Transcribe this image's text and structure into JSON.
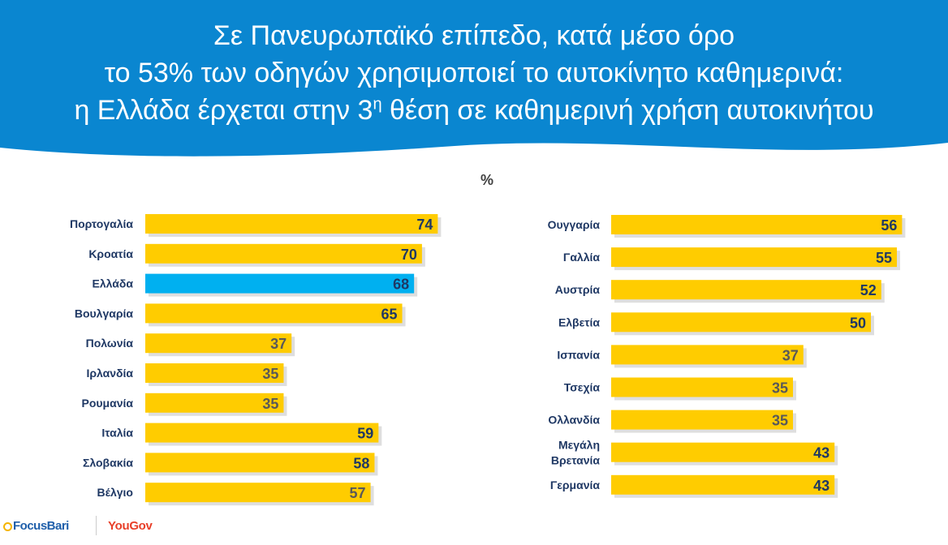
{
  "title": {
    "line1": "Σε Πανευρωπαϊκό επίπεδο, κατά μέσο όρο",
    "line2": "το 53% των οδηγών χρησιμοποιεί το αυτοκίνητο καθημερινά:",
    "line3_before": "η Ελλάδα έρχεται στην 3",
    "line3_sup": "η",
    "line3_after": " θέση σε καθημερινή χρήση αυτοκινήτου"
  },
  "unit_label": "%",
  "colors": {
    "header_bg": "#0a86d0",
    "bar_default": "#ffcc00",
    "bar_highlight": "#00b0f0",
    "label_text": "#1f3864",
    "value_dark": "#1f3864",
    "value_muted": "#595959"
  },
  "chart_data": [
    {
      "type": "bar",
      "orientation": "horizontal",
      "categories": [
        "Πορτογαλία",
        "Κροατία",
        "Ελλάδα",
        "Βουλγαρία",
        "Πολωνία",
        "Ιρλανδία",
        "Ρουμανία",
        "Ιταλία",
        "Σλοβακία",
        "Βέλγιο"
      ],
      "values": [
        74,
        70,
        68,
        65,
        37,
        35,
        35,
        59,
        58,
        57
      ],
      "highlight": "Ελλάδα",
      "value_label_style": [
        "dark",
        "dark",
        "dark",
        "dark",
        "muted",
        "muted",
        "muted",
        "dark",
        "dark",
        "muted"
      ]
    },
    {
      "type": "bar",
      "orientation": "horizontal",
      "categories": [
        "Ουγγαρία",
        "Γαλλία",
        "Αυστρία",
        "Ελβετία",
        "Ισπανία",
        "Τσεχία",
        "Ολλανδία",
        "Μεγάλη Βρετανία",
        "Γερμανία"
      ],
      "category_lines": [
        [
          "Ουγγαρία"
        ],
        [
          "Γαλλία"
        ],
        [
          "Αυστρία"
        ],
        [
          "Ελβετία"
        ],
        [
          "Ισπανία"
        ],
        [
          "Τσεχία"
        ],
        [
          "Ολλανδία"
        ],
        [
          "Μεγάλη",
          "Βρετανία"
        ],
        [
          "Γερμανία"
        ]
      ],
      "values": [
        56,
        55,
        52,
        50,
        37,
        35,
        35,
        43,
        43
      ],
      "value_label_style": [
        "dark",
        "dark",
        "dark",
        "dark",
        "muted",
        "muted",
        "muted",
        "dark",
        "dark"
      ]
    }
  ],
  "logos": {
    "focusbari": "FocusBari",
    "yougov": "YouGov"
  }
}
